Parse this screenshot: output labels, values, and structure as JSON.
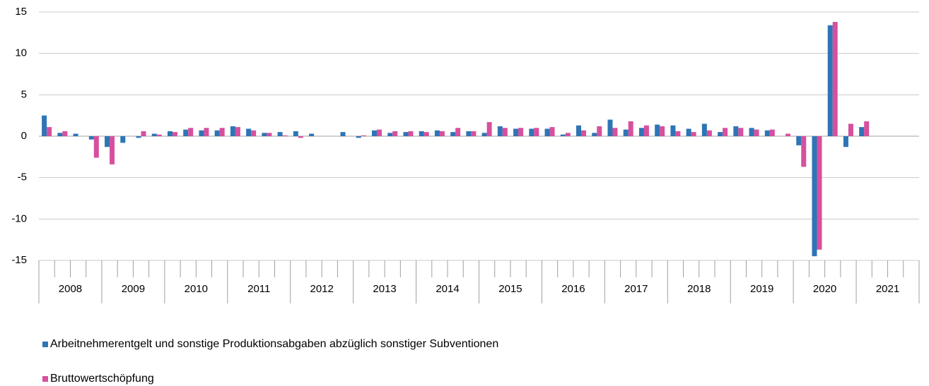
{
  "chart_data": {
    "type": "bar",
    "categories": [
      null,
      null,
      null,
      null,
      null,
      null,
      null,
      null,
      null,
      null,
      null,
      null,
      null,
      null,
      null,
      null,
      null,
      null,
      null,
      null,
      null,
      null,
      null,
      null,
      null,
      null,
      null,
      null,
      null,
      null,
      null,
      null,
      null,
      null,
      null,
      null,
      null,
      null,
      null,
      null,
      null,
      null,
      null,
      null,
      null,
      null,
      null,
      null,
      null,
      null,
      null,
      null,
      null,
      null,
      null,
      null
    ],
    "years": [
      "2008",
      "2009",
      "2010",
      "2011",
      "2012",
      "2013",
      "2014",
      "2015",
      "2016",
      "2017",
      "2018",
      "2019",
      "2020",
      "2021"
    ],
    "series": [
      {
        "name": "Arbeitnehmerentgelt und sonstige Produktionsabgaben abzüglich sonstiger Subventionen",
        "color": "#2e75b6",
        "values": [
          2.5,
          0.4,
          0.3,
          -0.4,
          -1.3,
          -0.8,
          -0.2,
          0.3,
          0.6,
          0.8,
          0.7,
          0.7,
          1.2,
          0.9,
          0.4,
          0.5,
          0.6,
          0.3,
          0,
          0.5,
          -0.2,
          0.7,
          0.4,
          0.5,
          0.6,
          0.7,
          0.5,
          0.6,
          0.4,
          1.2,
          0.9,
          0.9,
          0.9,
          0.2,
          1.3,
          0.4,
          2.0,
          0.8,
          1.0,
          1.4,
          1.3,
          0.9,
          1.5,
          0.5,
          1.2,
          1.0,
          0.7,
          0,
          -1.1,
          -14.5,
          13.4,
          -1.3,
          1.1,
          null,
          null,
          null
        ]
      },
      {
        "name": "Bruttowertschöpfung",
        "color": "#d6509e",
        "values": [
          1.1,
          0.6,
          0,
          -2.6,
          -3.4,
          0,
          0.6,
          0.2,
          0.5,
          1.0,
          1.0,
          1.0,
          1.1,
          0.7,
          0.4,
          0.1,
          -0.2,
          0,
          0,
          0,
          0.1,
          0.8,
          0.6,
          0.6,
          0.5,
          0.6,
          1.0,
          0.6,
          1.7,
          1.0,
          1.0,
          1.0,
          1.1,
          0.4,
          0.7,
          1.2,
          1.0,
          1.8,
          1.3,
          1.2,
          0.6,
          0.5,
          0.7,
          1.0,
          1.0,
          0.8,
          0.8,
          0.3,
          -3.7,
          -13.7,
          13.8,
          1.5,
          1.8,
          null,
          null,
          null
        ]
      }
    ],
    "ylim": [
      -15,
      15
    ],
    "yticks": [
      -15,
      -10,
      -5,
      0,
      5,
      10,
      15
    ],
    "grid": true
  }
}
